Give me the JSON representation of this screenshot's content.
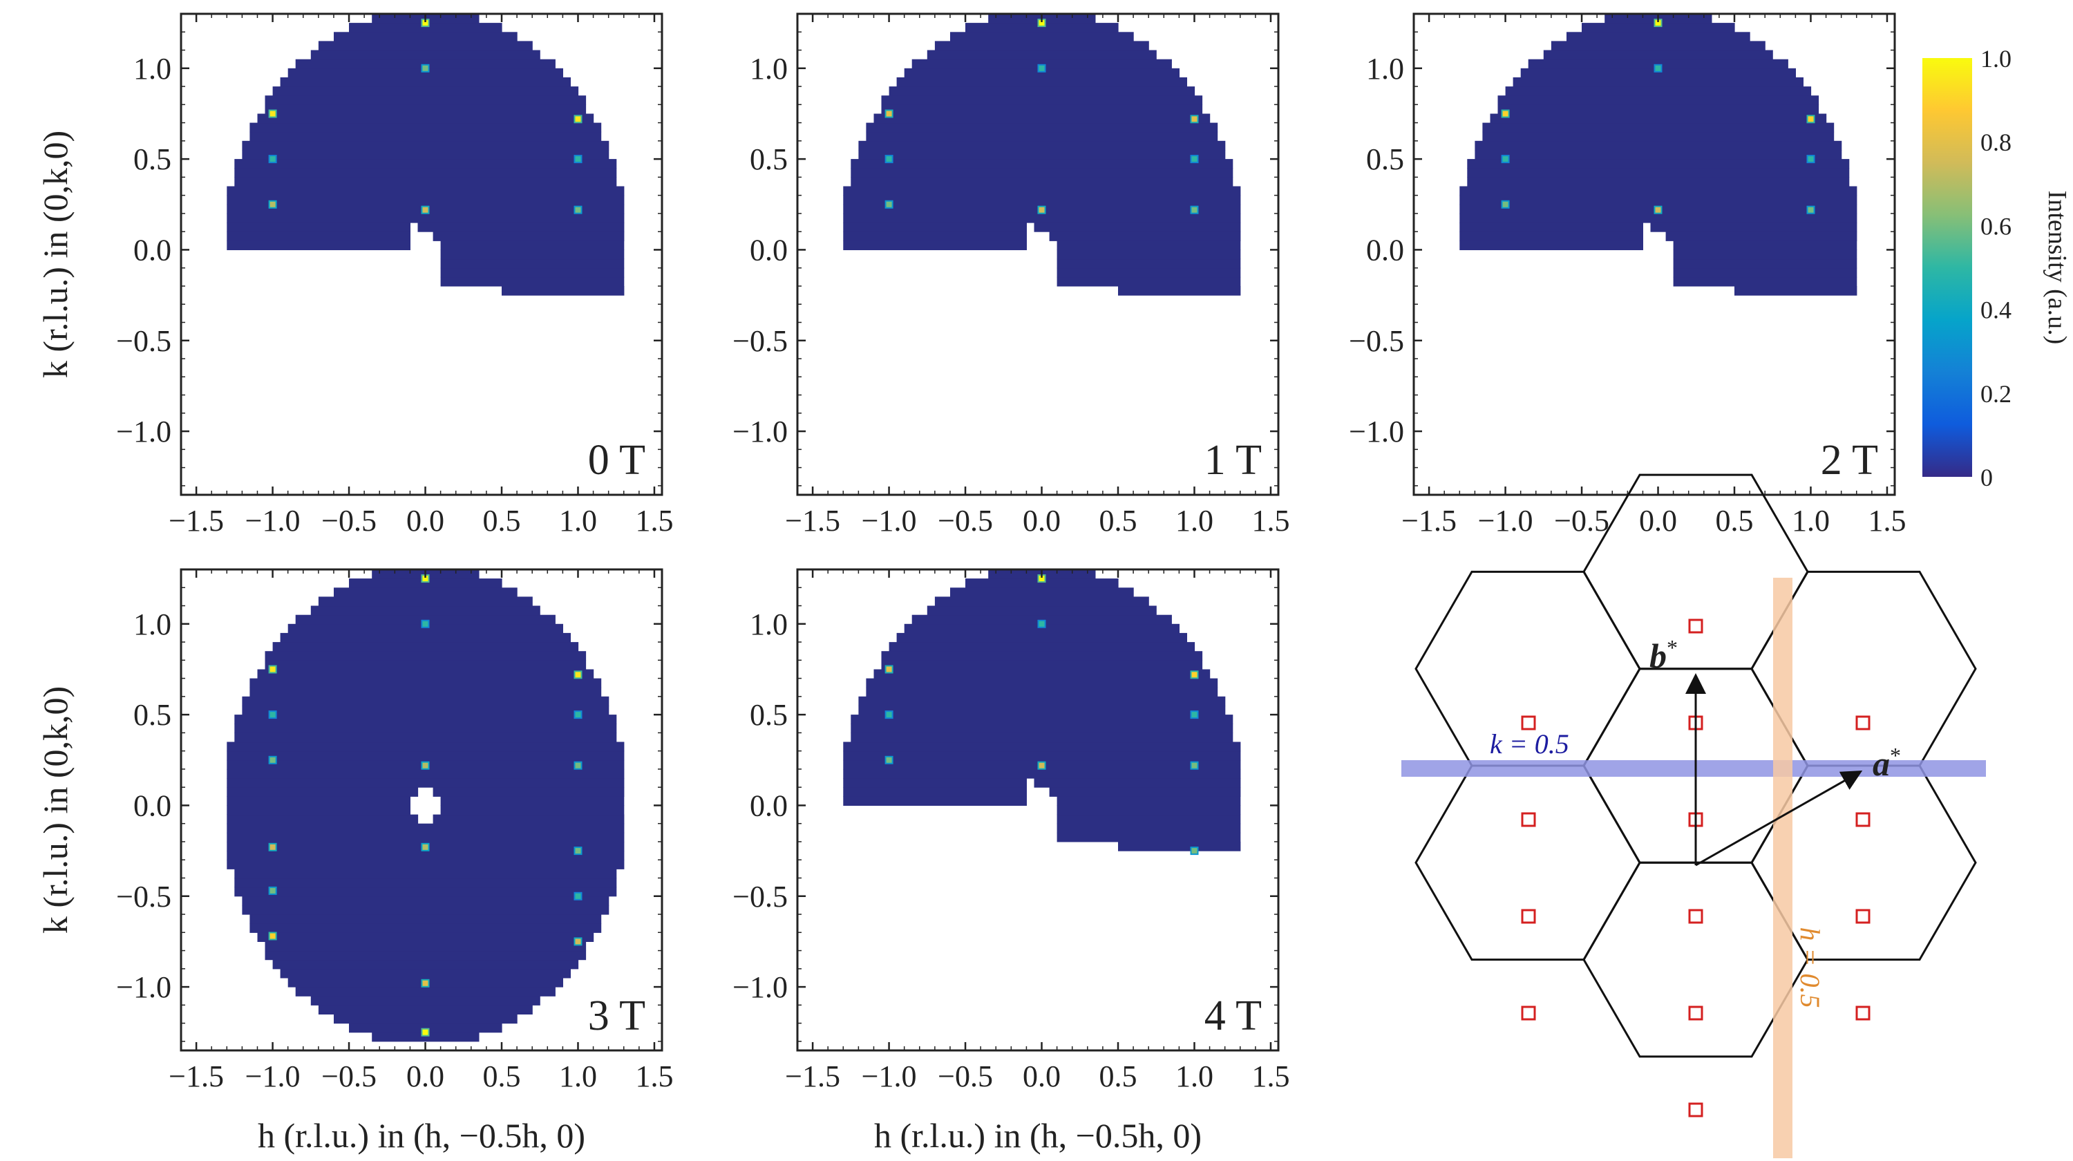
{
  "chart_data": [
    {
      "type": "heatmap",
      "field_label": "0 T",
      "x_label": "",
      "y_label": "k (r.l.u.) in (0,k,0)",
      "xlim": [
        -1.6,
        1.55
      ],
      "ylim": [
        -1.35,
        1.3
      ],
      "x_ticks": [
        "−1.5",
        "−1.0",
        "−0.5",
        "0.0",
        "0.5",
        "1.0",
        "1.5"
      ],
      "y_ticks": [
        "−1.0",
        "−0.5",
        "0.0",
        "0.5",
        "1.0"
      ],
      "coverage": "partial",
      "bragg_peaks": [
        {
          "h": 0.0,
          "k": 1.25,
          "intensity": 1.0
        },
        {
          "h": 0.0,
          "k": 1.0,
          "intensity": 0.6
        },
        {
          "h": -1.0,
          "k": 0.75,
          "intensity": 0.95
        },
        {
          "h": 1.0,
          "k": 0.72,
          "intensity": 0.95
        },
        {
          "h": -1.0,
          "k": 0.5,
          "intensity": 0.5
        },
        {
          "h": 1.0,
          "k": 0.5,
          "intensity": 0.5
        },
        {
          "h": -1.0,
          "k": 0.25,
          "intensity": 0.7
        },
        {
          "h": 0.0,
          "k": 0.22,
          "intensity": 0.75
        },
        {
          "h": 1.0,
          "k": 0.22,
          "intensity": 0.6
        }
      ]
    },
    {
      "type": "heatmap",
      "field_label": "1 T",
      "x_label": "",
      "y_label": "",
      "xlim": [
        -1.6,
        1.55
      ],
      "ylim": [
        -1.35,
        1.3
      ],
      "x_ticks": [
        "−1.5",
        "−1.0",
        "−0.5",
        "0.0",
        "0.5",
        "1.0",
        "1.5"
      ],
      "y_ticks": [
        "−1.0",
        "−0.5",
        "0.0",
        "0.5",
        "1.0"
      ],
      "coverage": "partial",
      "bragg_peaks": [
        {
          "h": 0.0,
          "k": 1.25,
          "intensity": 1.0
        },
        {
          "h": 0.0,
          "k": 1.0,
          "intensity": 0.5
        },
        {
          "h": -1.0,
          "k": 0.75,
          "intensity": 0.8
        },
        {
          "h": 1.0,
          "k": 0.72,
          "intensity": 0.8
        },
        {
          "h": -1.0,
          "k": 0.5,
          "intensity": 0.5
        },
        {
          "h": 1.0,
          "k": 0.5,
          "intensity": 0.5
        },
        {
          "h": -1.0,
          "k": 0.25,
          "intensity": 0.6
        },
        {
          "h": 0.0,
          "k": 0.22,
          "intensity": 0.75
        },
        {
          "h": 1.0,
          "k": 0.22,
          "intensity": 0.6
        }
      ]
    },
    {
      "type": "heatmap",
      "field_label": "2 T",
      "x_label": "",
      "y_label": "",
      "xlim": [
        -1.6,
        1.55
      ],
      "ylim": [
        -1.35,
        1.3
      ],
      "x_ticks": [
        "−1.5",
        "−1.0",
        "−0.5",
        "0.0",
        "0.5",
        "1.0",
        "1.5"
      ],
      "y_ticks": [
        "−1.0",
        "−0.5",
        "0.0",
        "0.5",
        "1.0"
      ],
      "coverage": "partial",
      "bragg_peaks": [
        {
          "h": 0.0,
          "k": 1.25,
          "intensity": 1.0
        },
        {
          "h": 0.0,
          "k": 1.0,
          "intensity": 0.5
        },
        {
          "h": -1.0,
          "k": 0.75,
          "intensity": 0.9
        },
        {
          "h": 1.0,
          "k": 0.72,
          "intensity": 0.9
        },
        {
          "h": -1.0,
          "k": 0.5,
          "intensity": 0.5
        },
        {
          "h": 1.0,
          "k": 0.5,
          "intensity": 0.5
        },
        {
          "h": -1.0,
          "k": 0.25,
          "intensity": 0.6
        },
        {
          "h": 0.0,
          "k": 0.22,
          "intensity": 0.75
        },
        {
          "h": 1.0,
          "k": 0.22,
          "intensity": 0.6
        }
      ]
    },
    {
      "type": "heatmap",
      "field_label": "3 T",
      "x_label": "h (r.l.u.) in (h, −0.5h, 0)",
      "y_label": "k (r.l.u.) in (0,k,0)",
      "xlim": [
        -1.6,
        1.55
      ],
      "ylim": [
        -1.35,
        1.3
      ],
      "x_ticks": [
        "−1.5",
        "−1.0",
        "−0.5",
        "0.0",
        "0.5",
        "1.0",
        "1.5"
      ],
      "y_ticks": [
        "−1.0",
        "−0.5",
        "0.0",
        "0.5",
        "1.0"
      ],
      "coverage": "full",
      "bragg_peaks": [
        {
          "h": 0.0,
          "k": 1.25,
          "intensity": 1.0
        },
        {
          "h": 0.0,
          "k": 1.0,
          "intensity": 0.5
        },
        {
          "h": -1.0,
          "k": 0.75,
          "intensity": 0.95
        },
        {
          "h": 1.0,
          "k": 0.72,
          "intensity": 0.95
        },
        {
          "h": -1.0,
          "k": 0.5,
          "intensity": 0.5
        },
        {
          "h": 1.0,
          "k": 0.5,
          "intensity": 0.5
        },
        {
          "h": -1.0,
          "k": 0.25,
          "intensity": 0.6
        },
        {
          "h": 0.0,
          "k": 0.22,
          "intensity": 0.7
        },
        {
          "h": 1.0,
          "k": 0.22,
          "intensity": 0.6
        },
        {
          "h": -1.0,
          "k": -0.23,
          "intensity": 0.75
        },
        {
          "h": 0.0,
          "k": -0.23,
          "intensity": 0.7
        },
        {
          "h": 1.0,
          "k": -0.25,
          "intensity": 0.6
        },
        {
          "h": -1.0,
          "k": -0.47,
          "intensity": 0.6
        },
        {
          "h": 1.0,
          "k": -0.5,
          "intensity": 0.5
        },
        {
          "h": -1.0,
          "k": -0.72,
          "intensity": 0.9
        },
        {
          "h": 1.0,
          "k": -0.75,
          "intensity": 0.75
        },
        {
          "h": 0.0,
          "k": -0.98,
          "intensity": 0.8
        },
        {
          "h": 0.0,
          "k": -1.25,
          "intensity": 1.0
        }
      ]
    },
    {
      "type": "heatmap",
      "field_label": "4 T",
      "x_label": "h (r.l.u.) in (h, −0.5h, 0)",
      "y_label": "",
      "xlim": [
        -1.6,
        1.55
      ],
      "ylim": [
        -1.35,
        1.3
      ],
      "x_ticks": [
        "−1.5",
        "−1.0",
        "−0.5",
        "0.0",
        "0.5",
        "1.0",
        "1.5"
      ],
      "y_ticks": [
        "−1.0",
        "−0.5",
        "0.0",
        "0.5",
        "1.0"
      ],
      "coverage": "partial",
      "bragg_peaks": [
        {
          "h": 0.0,
          "k": 1.25,
          "intensity": 1.0
        },
        {
          "h": 0.0,
          "k": 1.0,
          "intensity": 0.5
        },
        {
          "h": -1.0,
          "k": 0.75,
          "intensity": 0.8
        },
        {
          "h": 1.0,
          "k": 0.72,
          "intensity": 0.9
        },
        {
          "h": -1.0,
          "k": 0.5,
          "intensity": 0.5
        },
        {
          "h": 1.0,
          "k": 0.5,
          "intensity": 0.5
        },
        {
          "h": -1.0,
          "k": 0.25,
          "intensity": 0.6
        },
        {
          "h": 0.0,
          "k": 0.22,
          "intensity": 0.75
        },
        {
          "h": 1.0,
          "k": 0.22,
          "intensity": 0.6
        },
        {
          "h": 1.0,
          "k": -0.25,
          "intensity": 0.6
        }
      ]
    }
  ],
  "colorbar": {
    "label": "Intensity (a.u.)",
    "range": [
      0,
      1
    ],
    "ticks": [
      "0",
      "0.2",
      "0.4",
      "0.6",
      "0.8",
      "1.0"
    ],
    "colors": [
      "#352a87",
      "#0f5cdd",
      "#1481d6",
      "#06a4ca",
      "#2eb7a4",
      "#87bf77",
      "#d1bb59",
      "#fec832",
      "#f9fb0e"
    ]
  },
  "background_color": "#2c2f83",
  "diagram": {
    "label_b": "b",
    "label_a": "a",
    "superscript": "*",
    "k_line_label": "k = 0.5",
    "h_line_label": "h = 0.5",
    "k_line_color": "#8f94e3",
    "h_line_color": "#f7c9a3",
    "k_label_color": "#1c1ca0",
    "h_label_color": "#e08a2e",
    "marker_color": "#d42020"
  }
}
